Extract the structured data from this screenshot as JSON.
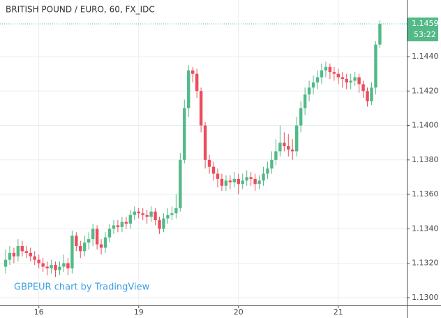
{
  "chart_data": {
    "type": "candlestick",
    "title": "BRITISH POUND / EURO, 60, FX_IDC",
    "watermark": "GBPEUR chart by TradingView",
    "countdown": "53:22",
    "up_color": "#53b987",
    "down_color": "#eb4d5c",
    "grid": true,
    "categories": [
      null,
      null,
      null,
      null,
      null,
      null,
      null,
      null,
      "16",
      null,
      null,
      null,
      null,
      null,
      null,
      null,
      null,
      null,
      null,
      null,
      null,
      null,
      null,
      null,
      null,
      null,
      null,
      null,
      null,
      null,
      null,
      null,
      "19",
      null,
      null,
      null,
      null,
      null,
      null,
      null,
      null,
      null,
      null,
      null,
      null,
      null,
      null,
      null,
      null,
      null,
      null,
      null,
      null,
      null,
      null,
      null,
      "20",
      null,
      null,
      null,
      null,
      null,
      null,
      null,
      null,
      null,
      null,
      null,
      null,
      null,
      null,
      null,
      null,
      null,
      null,
      null,
      null,
      null,
      null,
      null,
      "21",
      null,
      null,
      null,
      null,
      null,
      null,
      null,
      null,
      null,
      null
    ],
    "open": [
      1.1318,
      1.1322,
      1.1326,
      1.1324,
      1.133,
      1.1327,
      1.1326,
      1.1324,
      1.1322,
      1.132,
      1.1318,
      1.1317,
      1.1319,
      1.1316,
      1.1318,
      1.132,
      1.1317,
      1.1336,
      1.133,
      1.1327,
      1.1332,
      1.1334,
      1.134,
      1.1331,
      1.1329,
      1.1335,
      1.134,
      1.1342,
      1.1341,
      1.1344,
      1.1343,
      1.1348,
      1.135,
      1.1349,
      1.1348,
      1.1347,
      1.135,
      1.1345,
      1.134,
      1.1346,
      1.1348,
      1.1349,
      1.1352,
      1.138,
      1.141,
      1.1432,
      1.143,
      1.142,
      1.14,
      1.138,
      1.1376,
      1.1372,
      1.1369,
      1.1365,
      1.1368,
      1.1367,
      1.1369,
      1.1366,
      1.1368,
      1.137,
      1.1369,
      1.1366,
      1.1368,
      1.1372,
      1.1375,
      1.138,
      1.1385,
      1.139,
      1.1388,
      1.1386,
      1.1385,
      1.14,
      1.141,
      1.1418,
      1.1422,
      1.1425,
      1.1428,
      1.1432,
      1.1434,
      1.1431,
      1.143,
      1.1428,
      1.1427,
      1.1425,
      1.1426,
      1.1428,
      1.1424,
      1.142,
      1.1414,
      1.1422,
      1.1447
    ],
    "high": [
      1.1328,
      1.133,
      1.1329,
      1.1334,
      1.1333,
      1.133,
      1.1329,
      1.1327,
      1.1325,
      1.1323,
      1.1321,
      1.1322,
      1.1321,
      1.1321,
      1.1325,
      1.1323,
      1.1339,
      1.1338,
      1.1333,
      1.1336,
      1.1338,
      1.1343,
      1.1342,
      1.1334,
      1.1338,
      1.1343,
      1.1345,
      1.1345,
      1.1347,
      1.1347,
      1.1351,
      1.1353,
      1.1352,
      1.1352,
      1.1351,
      1.1353,
      1.1352,
      1.1347,
      1.1349,
      1.1352,
      1.1353,
      1.136,
      1.1384,
      1.1415,
      1.1435,
      1.1434,
      1.1433,
      1.1422,
      1.1402,
      1.1383,
      1.1379,
      1.1375,
      1.1372,
      1.1371,
      1.1371,
      1.1373,
      1.1372,
      1.1372,
      1.1374,
      1.1373,
      1.1372,
      1.1371,
      1.1376,
      1.1379,
      1.1385,
      1.1392,
      1.14,
      1.1396,
      1.1395,
      1.1392,
      1.1405,
      1.1414,
      1.1422,
      1.1426,
      1.1429,
      1.1432,
      1.1436,
      1.1437,
      1.1436,
      1.1434,
      1.1433,
      1.1431,
      1.143,
      1.143,
      1.1431,
      1.143,
      1.1426,
      1.1422,
      1.1425,
      1.1449,
      1.1461
    ],
    "low": [
      1.1314,
      1.1319,
      1.132,
      1.1321,
      1.1324,
      1.1323,
      1.1321,
      1.1319,
      1.1317,
      1.1315,
      1.1313,
      1.1314,
      1.1312,
      1.1313,
      1.1315,
      1.1313,
      1.1314,
      1.1327,
      1.1323,
      1.1324,
      1.1328,
      1.133,
      1.1328,
      1.1325,
      1.1326,
      1.1332,
      1.1337,
      1.1338,
      1.1338,
      1.134,
      1.134,
      1.1345,
      1.1346,
      1.1345,
      1.1343,
      1.1344,
      1.1342,
      1.1337,
      1.1338,
      1.1343,
      1.1345,
      1.1346,
      1.135,
      1.1378,
      1.1405,
      1.1425,
      1.1416,
      1.1396,
      1.1375,
      1.1372,
      1.1368,
      1.1364,
      1.1362,
      1.1362,
      1.1363,
      1.1364,
      1.136,
      1.1363,
      1.1365,
      1.1365,
      1.1362,
      1.1363,
      1.1365,
      1.1369,
      1.1372,
      1.1377,
      1.1382,
      1.1385,
      1.1382,
      1.138,
      1.1382,
      1.1396,
      1.1406,
      1.1414,
      1.1418,
      1.1421,
      1.1424,
      1.1428,
      1.1427,
      1.1426,
      1.1424,
      1.1422,
      1.1421,
      1.1421,
      1.1423,
      1.1419,
      1.1416,
      1.1411,
      1.1412,
      1.1418,
      1.1445
    ],
    "close": [
      1.1322,
      1.1326,
      1.1324,
      1.133,
      1.1327,
      1.1326,
      1.1324,
      1.1322,
      1.132,
      1.1318,
      1.1317,
      1.1319,
      1.1316,
      1.1318,
      1.132,
      1.1317,
      1.1336,
      1.133,
      1.1327,
      1.1332,
      1.1334,
      1.134,
      1.1331,
      1.1329,
      1.1335,
      1.134,
      1.1342,
      1.1341,
      1.1344,
      1.1343,
      1.1348,
      1.135,
      1.1349,
      1.1348,
      1.1347,
      1.135,
      1.1345,
      1.134,
      1.1346,
      1.1348,
      1.1349,
      1.1352,
      1.138,
      1.141,
      1.1432,
      1.143,
      1.142,
      1.14,
      1.138,
      1.1376,
      1.1372,
      1.1369,
      1.1365,
      1.1368,
      1.1367,
      1.1369,
      1.1366,
      1.1368,
      1.137,
      1.1369,
      1.1366,
      1.1368,
      1.1372,
      1.1375,
      1.138,
      1.1385,
      1.139,
      1.1388,
      1.1386,
      1.1385,
      1.14,
      1.141,
      1.1418,
      1.1422,
      1.1425,
      1.1428,
      1.1432,
      1.1434,
      1.1431,
      1.143,
      1.1428,
      1.1427,
      1.1425,
      1.1426,
      1.1428,
      1.1424,
      1.142,
      1.1414,
      1.1422,
      1.1447,
      1.1459
    ],
    "ylim": [
      1.12955,
      1.14615
    ],
    "yticks": [
      {
        "value": 1.13,
        "label": "1.1300"
      },
      {
        "value": 1.132,
        "label": "1.1320"
      },
      {
        "value": 1.134,
        "label": "1.1340"
      },
      {
        "value": 1.136,
        "label": "1.1360"
      },
      {
        "value": 1.138,
        "label": "1.1380"
      },
      {
        "value": 1.14,
        "label": "1.1400"
      },
      {
        "value": 1.142,
        "label": "1.1420"
      },
      {
        "value": 1.144,
        "label": "1.1440"
      }
    ]
  }
}
